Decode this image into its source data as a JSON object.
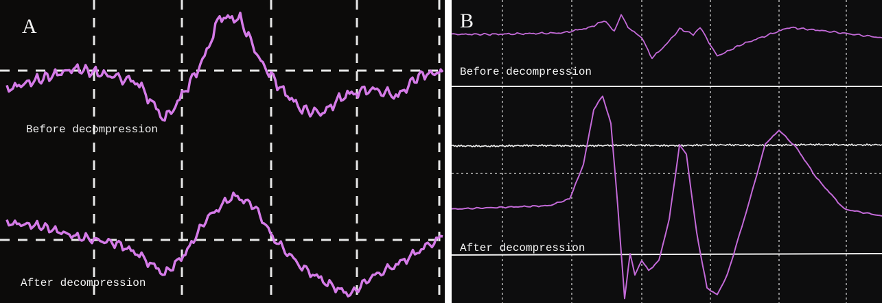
{
  "panels": [
    {
      "label": "A",
      "before": "Before decompression",
      "after": "After decompression"
    },
    {
      "label": "B",
      "before": "Before decompression",
      "after": "After decompression"
    }
  ]
}
